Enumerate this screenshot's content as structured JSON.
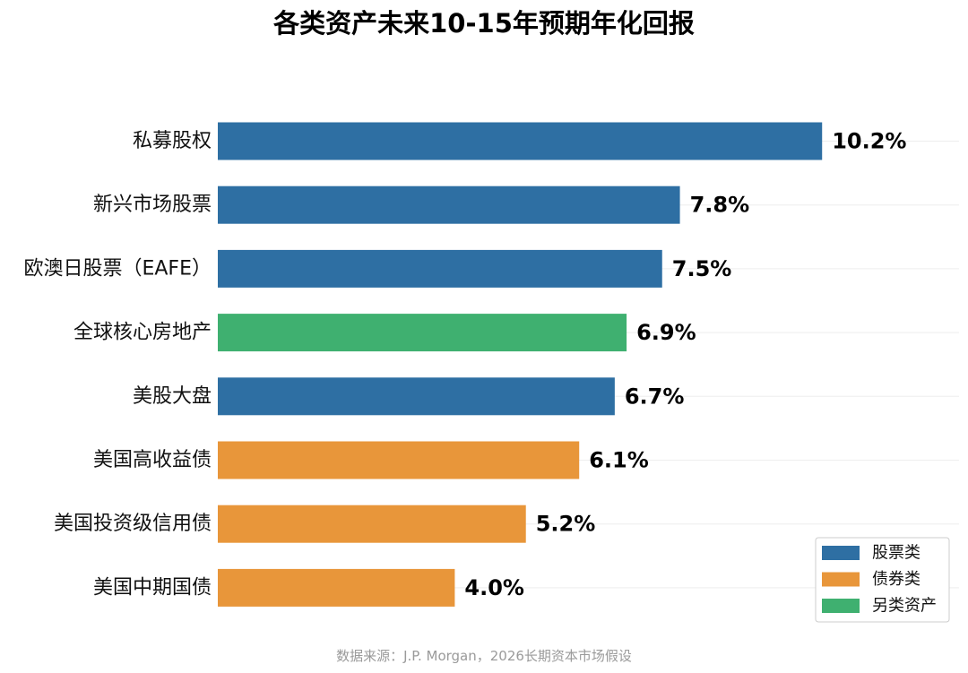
{
  "chart_data": {
    "type": "bar",
    "orientation": "horizontal",
    "title": "各类资产未来10-15年预期年化回报",
    "categories": [
      "私募股权",
      "新兴市场股票",
      "欧澳日股票（EAFE）",
      "全球核心房地产",
      "美股大盘",
      "美国高收益债",
      "美国投资级信用债",
      "美国中期国债"
    ],
    "values": [
      10.2,
      7.8,
      7.5,
      6.9,
      6.7,
      6.1,
      5.2,
      4.0
    ],
    "value_labels": [
      "10.2%",
      "7.8%",
      "7.5%",
      "6.9%",
      "6.7%",
      "6.1%",
      "5.2%",
      "4.0%"
    ],
    "groups": [
      "股票类",
      "股票类",
      "股票类",
      "另类资产",
      "股票类",
      "债券类",
      "债券类",
      "债券类"
    ],
    "xlim": [
      0,
      12
    ],
    "grid": true,
    "legend_position": "bottom-right",
    "legend": [
      {
        "name": "股票类",
        "color": "#2e6fa3"
      },
      {
        "name": "债券类",
        "color": "#e8963a"
      },
      {
        "name": "另类资产",
        "color": "#3fb070"
      }
    ],
    "xlabel": "",
    "ylabel": ""
  },
  "footer": {
    "source": "数据来源：J.P. Morgan，2026长期资本市场假设"
  }
}
